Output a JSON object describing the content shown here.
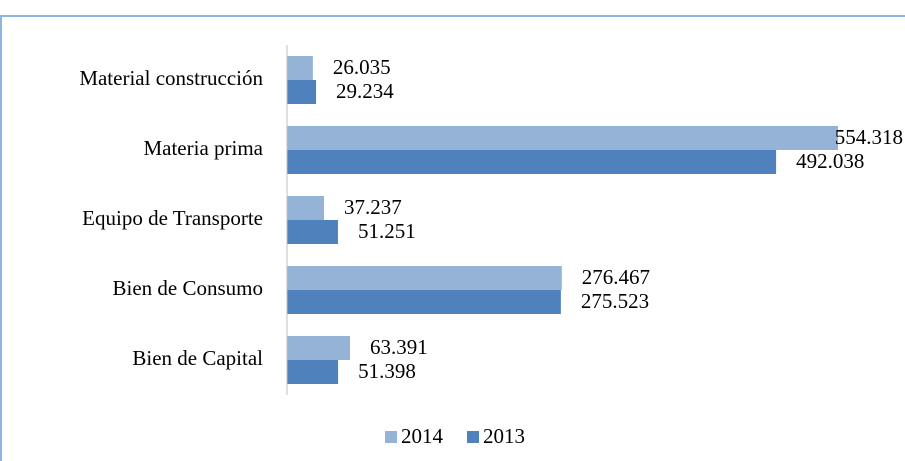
{
  "chart_data": {
    "type": "bar",
    "orientation": "horizontal",
    "categories": [
      "Material construcción",
      "Materia prima",
      "Equipo de Transporte",
      "Bien de Consumo",
      "Bien de Capital"
    ],
    "series": [
      {
        "name": "2014",
        "color": "#95b3d7",
        "values": [
          26.035,
          554.318,
          37.237,
          276.467,
          63.391
        ]
      },
      {
        "name": "2013",
        "color": "#4f81bd",
        "values": [
          29.234,
          492.038,
          51.251,
          275.523,
          51.398
        ]
      }
    ]
  }
}
